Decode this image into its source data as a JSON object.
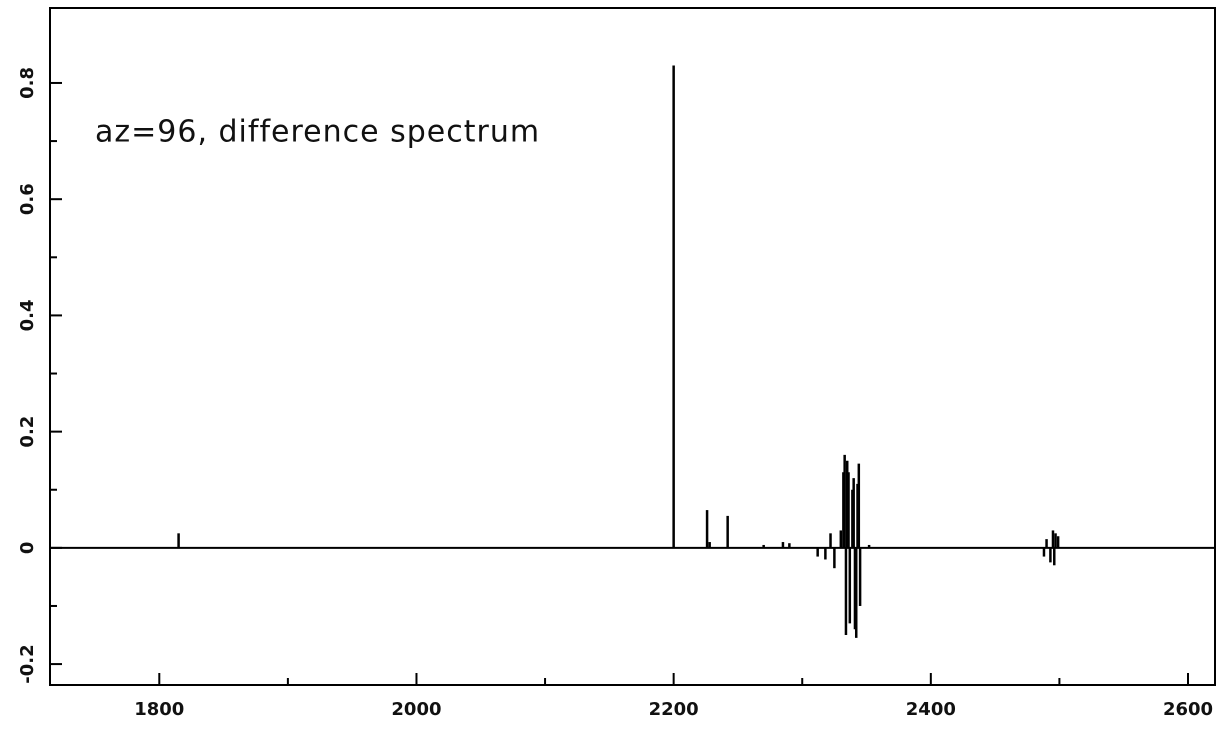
{
  "chart_data": {
    "type": "stem",
    "annotation": "az=96, difference spectrum",
    "x": [
      1815,
      2200,
      2226,
      2228,
      2242,
      2270,
      2285,
      2290,
      2312,
      2318,
      2322,
      2325,
      2330,
      2332,
      2333,
      2334,
      2335,
      2336,
      2337,
      2339,
      2340,
      2341,
      2342,
      2343,
      2344,
      2345,
      2352,
      2488,
      2490,
      2493,
      2495,
      2496,
      2497,
      2499
    ],
    "values": [
      0.025,
      0.83,
      0.065,
      0.01,
      0.055,
      0.005,
      0.01,
      0.008,
      -0.015,
      -0.02,
      0.025,
      -0.035,
      0.03,
      0.13,
      0.16,
      -0.15,
      0.15,
      0.13,
      -0.13,
      0.1,
      0.12,
      -0.14,
      -0.155,
      0.11,
      0.145,
      -0.1,
      0.005,
      -0.015,
      0.015,
      -0.025,
      0.03,
      -0.03,
      0.025,
      0.02
    ],
    "color": "#000000",
    "xlim": [
      1715,
      2621
    ],
    "ylim": [
      -0.236,
      0.929
    ],
    "xticks": [
      1800,
      2000,
      2200,
      2400,
      2600
    ],
    "xticks_minor": [
      1900,
      2100,
      2300,
      2500
    ],
    "yticks": [
      -0.2,
      0,
      0.2,
      0.4,
      0.6,
      0.8
    ],
    "yticks_minor": [
      -0.1,
      0.1,
      0.3,
      0.5,
      0.7
    ],
    "zero_line": true
  }
}
